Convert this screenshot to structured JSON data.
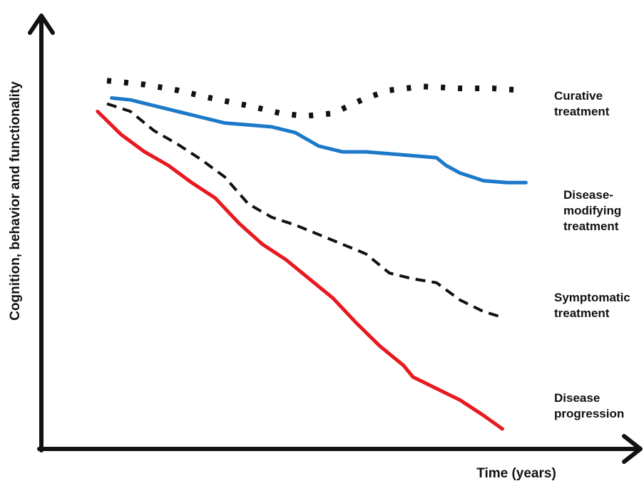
{
  "chart_data": {
    "type": "line",
    "title": "",
    "xlabel": "Time (years)",
    "ylabel": "Cognition, behavior and functionality",
    "xlim": [
      0,
      100
    ],
    "ylim": [
      0,
      100
    ],
    "grid": false,
    "legend": "none (series labelled directly at the right end of each line)",
    "series": [
      {
        "name": "Curative treatment",
        "label_lines": [
          "Curative",
          "treatment"
        ],
        "style": "dotted",
        "color": "#111111",
        "x": [
          0,
          8,
          15,
          22,
          30,
          37,
          42,
          48,
          55,
          60,
          67,
          75,
          82,
          88
        ],
        "y": [
          92,
          91,
          89.5,
          87.5,
          85.5,
          83.5,
          82.8,
          83.5,
          87.5,
          89.5,
          90.5,
          90,
          90,
          89.5
        ]
      },
      {
        "name": "Disease-modifying treatment",
        "label_lines": [
          "Disease-",
          "modifying",
          "treatment"
        ],
        "style": "solid",
        "color": "#1c78c8",
        "x": [
          1,
          5,
          10,
          15,
          20,
          25,
          30,
          35,
          40,
          45,
          50,
          55,
          60,
          65,
          70,
          72,
          75,
          80,
          85,
          89
        ],
        "y": [
          87.5,
          87,
          85.5,
          84,
          82.5,
          81,
          80.5,
          80,
          78.5,
          75,
          73.5,
          73.5,
          73,
          72.5,
          72,
          70,
          68,
          66,
          65.5,
          65.5
        ]
      },
      {
        "name": "Symptomatic treatment",
        "label_lines": [
          "Symptomatic",
          "treatment"
        ],
        "style": "dashed",
        "color": "#111111",
        "x": [
          0,
          5,
          10,
          15,
          20,
          25,
          30,
          35,
          40,
          45,
          50,
          55,
          60,
          65,
          70,
          75,
          80,
          84
        ],
        "y": [
          86,
          84,
          79,
          75.5,
          71.5,
          67,
          60,
          56.5,
          54.5,
          52,
          49.5,
          47,
          42,
          40.5,
          39.5,
          35,
          32,
          30.5
        ]
      },
      {
        "name": "Disease progression",
        "label_lines": [
          "Disease",
          "progression"
        ],
        "style": "solid",
        "color": "#e8191f",
        "x": [
          -2,
          3,
          8,
          13,
          18,
          23,
          28,
          33,
          38,
          43,
          48,
          53,
          58,
          63,
          65,
          70,
          75,
          80,
          84
        ],
        "y": [
          84,
          78,
          73.5,
          70,
          65.5,
          61.5,
          55,
          49.5,
          45.5,
          40.5,
          35.5,
          29,
          23,
          18,
          15,
          12,
          9,
          5,
          1.5
        ]
      }
    ]
  }
}
